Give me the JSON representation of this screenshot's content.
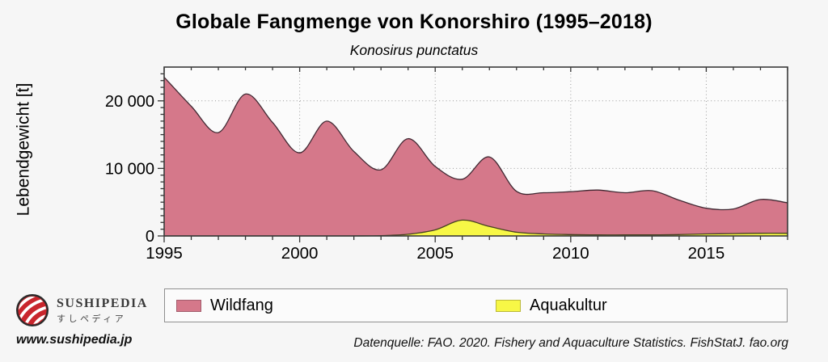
{
  "chart_data": {
    "type": "area",
    "title": "Globale Fangmenge von Konorshiro (1995–2018)",
    "subtitle": "Konosirus punctatus",
    "ylabel": "Lebendgewicht [t]",
    "xlabel": "",
    "xlim": [
      1995,
      2018
    ],
    "ylim": [
      0,
      25000
    ],
    "grid": {
      "h": [
        10000,
        20000
      ],
      "v": [
        2000,
        2005,
        2010,
        2015
      ]
    },
    "xticks": {
      "major": [
        1995,
        2000,
        2005,
        2010,
        2015
      ],
      "labels": [
        "1995",
        "2000",
        "2005",
        "2010",
        "2015"
      ],
      "minor_step": 1
    },
    "yticks": {
      "major": [
        0,
        10000,
        20000
      ],
      "labels": [
        "0",
        "10 000",
        "20 000"
      ],
      "minor_step": 1000
    },
    "legend_position": "bottom",
    "x": [
      1995,
      1996,
      1997,
      1998,
      1999,
      2000,
      2001,
      2002,
      2003,
      2004,
      2005,
      2006,
      2007,
      2008,
      2009,
      2010,
      2011,
      2012,
      2013,
      2014,
      2015,
      2016,
      2017,
      2018
    ],
    "series": [
      {
        "name": "Wildfang",
        "color": "#d5788a",
        "stroke": "#402832",
        "values": [
          23500,
          19200,
          15300,
          21000,
          16800,
          12300,
          17000,
          12500,
          9800,
          14400,
          10300,
          8400,
          11700,
          6600,
          6400,
          6550,
          6800,
          6400,
          6700,
          5300,
          4100,
          4000,
          5400,
          4900
        ]
      },
      {
        "name": "Aquakultur",
        "color": "#f7f746",
        "stroke": "#45401f",
        "values": [
          0,
          0,
          0,
          0,
          0,
          0,
          0,
          0,
          50,
          250,
          900,
          2350,
          1400,
          550,
          300,
          200,
          150,
          150,
          150,
          200,
          300,
          350,
          400,
          400
        ]
      }
    ],
    "colors": {
      "plot_bg": "#fbfbfb",
      "page_bg": "#f6f6f6",
      "grid": "#9a9a9a",
      "frame": "#3a3a3a"
    }
  },
  "footer": {
    "brand": {
      "name": "SUSHIPEDIA",
      "name_jp": "すしペディア",
      "url": "www.sushipedia.jp",
      "logo_color": "#c9252c"
    },
    "source": "Datenquelle: FAO. 2020. Fishery and Aquaculture Statistics. FishStatJ. fao.org"
  }
}
